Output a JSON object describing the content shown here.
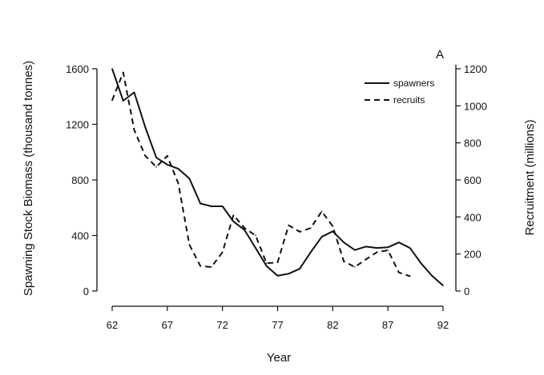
{
  "chart_data": {
    "type": "line",
    "panel_label": "A",
    "xlabel": "Year",
    "ylabel_left": "Spawning Stock Biomass (thousand tonnes)",
    "ylabel_right": "Recruitment (millions)",
    "xlim": [
      62,
      92
    ],
    "ylim_left": [
      0,
      1600
    ],
    "ylim_right": [
      0,
      1200
    ],
    "x_ticks": [
      62,
      67,
      72,
      77,
      82,
      87,
      92
    ],
    "y_ticks_left": [
      0,
      400,
      800,
      1200,
      1600
    ],
    "y_ticks_right": [
      0,
      200,
      400,
      600,
      800,
      1000,
      1200
    ],
    "legend_position": "top-right",
    "series": [
      {
        "name": "spawners",
        "axis": "left",
        "style": "solid",
        "x": [
          62,
          63,
          64,
          65,
          66,
          67,
          68,
          69,
          70,
          71,
          72,
          73,
          74,
          75,
          76,
          77,
          78,
          79,
          80,
          81,
          82,
          83,
          84,
          85,
          86,
          87,
          88,
          89,
          90,
          91,
          92
        ],
        "values": [
          1600,
          1370,
          1430,
          1180,
          960,
          910,
          880,
          810,
          630,
          610,
          610,
          500,
          440,
          310,
          180,
          110,
          125,
          160,
          280,
          390,
          430,
          350,
          295,
          320,
          310,
          315,
          350,
          310,
          200,
          110,
          40
        ]
      },
      {
        "name": "recruits",
        "axis": "right",
        "style": "dashed",
        "x": [
          62,
          63,
          64,
          65,
          66,
          67,
          68,
          69,
          70,
          71,
          72,
          73,
          74,
          75,
          76,
          77,
          78,
          79,
          80,
          81,
          82,
          83,
          84,
          85,
          86,
          87,
          88,
          89
        ],
        "values": [
          1030,
          1180,
          870,
          730,
          670,
          730,
          580,
          250,
          135,
          130,
          210,
          410,
          340,
          300,
          150,
          155,
          355,
          320,
          340,
          430,
          350,
          160,
          130,
          170,
          210,
          220,
          100,
          80
        ]
      }
    ]
  }
}
